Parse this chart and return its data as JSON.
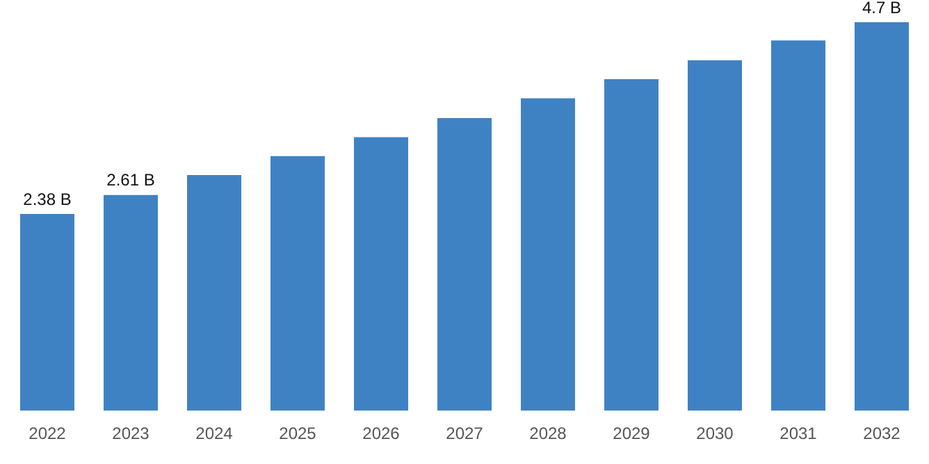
{
  "chart_data": {
    "type": "bar",
    "categories": [
      "2022",
      "2023",
      "2024",
      "2025",
      "2026",
      "2027",
      "2028",
      "2029",
      "2030",
      "2031",
      "2032"
    ],
    "values": [
      2.38,
      2.61,
      2.85,
      3.08,
      3.31,
      3.54,
      3.78,
      4.01,
      4.24,
      4.48,
      4.7
    ],
    "value_labels": [
      "2.38 B",
      "2.61 B",
      null,
      null,
      null,
      null,
      null,
      null,
      null,
      null,
      "4.7 B"
    ],
    "color": "#3f82c4",
    "grid": false,
    "legend": false,
    "tick_labels": "x"
  }
}
